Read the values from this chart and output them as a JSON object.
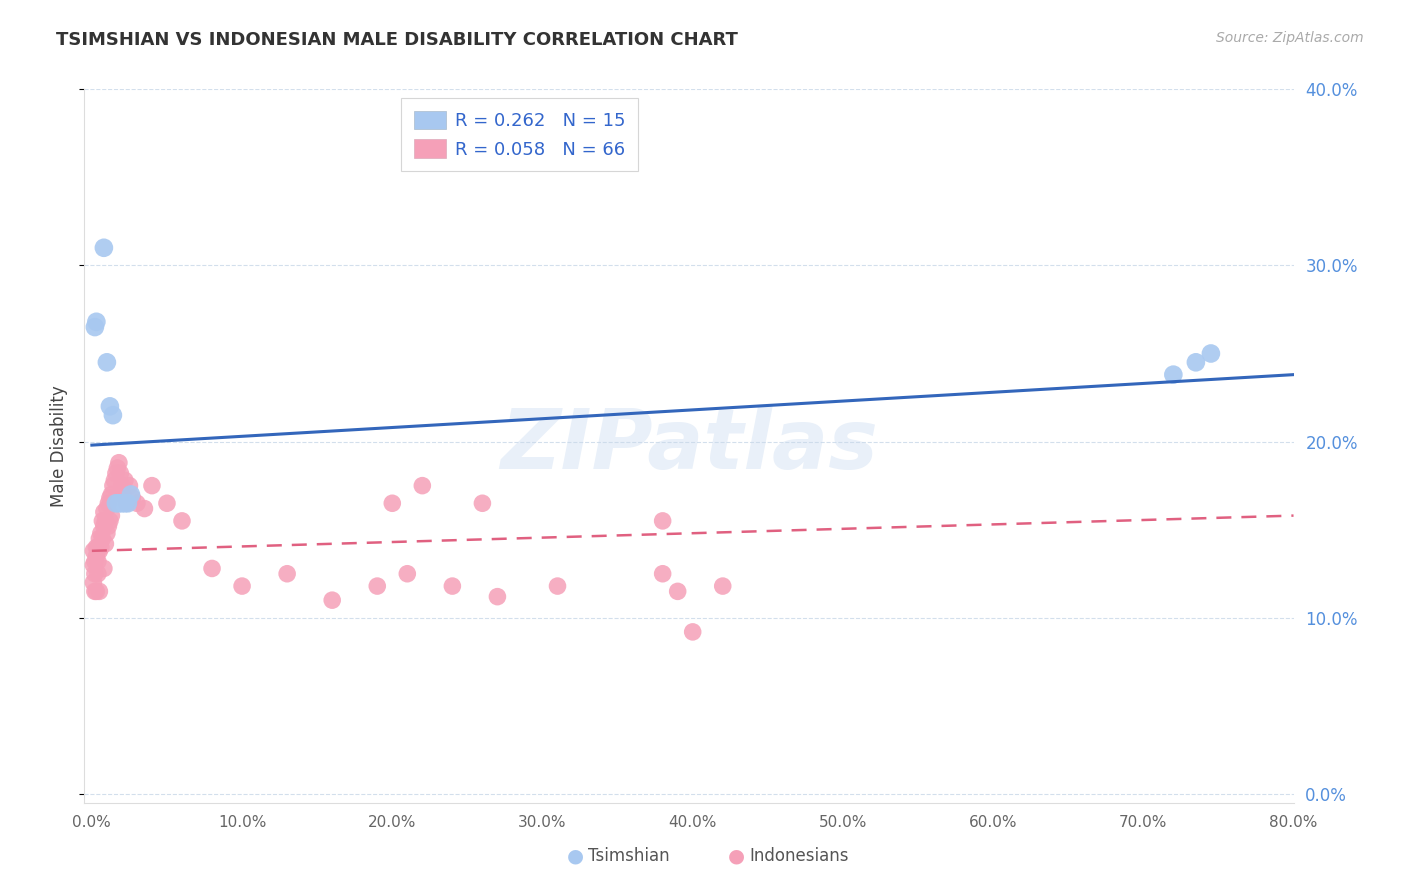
{
  "title": "TSIMSHIAN VS INDONESIAN MALE DISABILITY CORRELATION CHART",
  "source": "Source: ZipAtlas.com",
  "ylabel": "Male Disability",
  "xlabel_tsimshian": "Tsimshian",
  "xlabel_indonesians": "Indonesians",
  "xlim": [
    -0.005,
    0.8
  ],
  "ylim": [
    -0.005,
    0.4
  ],
  "xticks": [
    0.0,
    0.1,
    0.2,
    0.3,
    0.4,
    0.5,
    0.6,
    0.7,
    0.8
  ],
  "yticks": [
    0.0,
    0.1,
    0.2,
    0.3,
    0.4
  ],
  "watermark": "ZIPatlas",
  "legend_tsimshian": "R = 0.262   N = 15",
  "legend_indonesians": "R = 0.058   N = 66",
  "tsimshian_color": "#a8c8f0",
  "indonesian_color": "#f5a0b8",
  "trend_blue": "#3366bb",
  "trend_pink": "#e06080",
  "tsimshian_x": [
    0.002,
    0.003,
    0.008,
    0.01,
    0.012,
    0.014,
    0.016,
    0.018,
    0.02,
    0.022,
    0.024,
    0.026,
    0.72,
    0.735,
    0.745
  ],
  "tsimshian_y": [
    0.265,
    0.268,
    0.31,
    0.245,
    0.22,
    0.215,
    0.165,
    0.165,
    0.165,
    0.165,
    0.165,
    0.17,
    0.238,
    0.245,
    0.25
  ],
  "indonesian_x": [
    0.001,
    0.001,
    0.001,
    0.002,
    0.002,
    0.002,
    0.003,
    0.003,
    0.003,
    0.004,
    0.004,
    0.004,
    0.005,
    0.005,
    0.005,
    0.006,
    0.006,
    0.007,
    0.007,
    0.008,
    0.008,
    0.008,
    0.009,
    0.009,
    0.01,
    0.01,
    0.011,
    0.011,
    0.012,
    0.012,
    0.013,
    0.013,
    0.014,
    0.015,
    0.016,
    0.017,
    0.018,
    0.019,
    0.02,
    0.021,
    0.022,
    0.023,
    0.025,
    0.027,
    0.03,
    0.035,
    0.04,
    0.05,
    0.06,
    0.08,
    0.1,
    0.13,
    0.16,
    0.19,
    0.21,
    0.24,
    0.27,
    0.31,
    0.38,
    0.39,
    0.4,
    0.42,
    0.38,
    0.26,
    0.22,
    0.2
  ],
  "indonesian_y": [
    0.138,
    0.13,
    0.12,
    0.132,
    0.125,
    0.115,
    0.14,
    0.135,
    0.115,
    0.14,
    0.132,
    0.125,
    0.145,
    0.138,
    0.115,
    0.148,
    0.14,
    0.155,
    0.145,
    0.16,
    0.152,
    0.128,
    0.155,
    0.142,
    0.162,
    0.148,
    0.165,
    0.152,
    0.168,
    0.155,
    0.17,
    0.158,
    0.175,
    0.178,
    0.182,
    0.185,
    0.188,
    0.182,
    0.175,
    0.17,
    0.178,
    0.165,
    0.175,
    0.168,
    0.165,
    0.162,
    0.175,
    0.165,
    0.155,
    0.128,
    0.118,
    0.125,
    0.11,
    0.118,
    0.125,
    0.118,
    0.112,
    0.118,
    0.125,
    0.115,
    0.092,
    0.118,
    0.155,
    0.165,
    0.175,
    0.165
  ],
  "blue_trend_x": [
    0.0,
    0.8
  ],
  "blue_trend_y": [
    0.198,
    0.238
  ],
  "pink_trend_x": [
    0.0,
    0.8
  ],
  "pink_trend_y": [
    0.138,
    0.158
  ]
}
